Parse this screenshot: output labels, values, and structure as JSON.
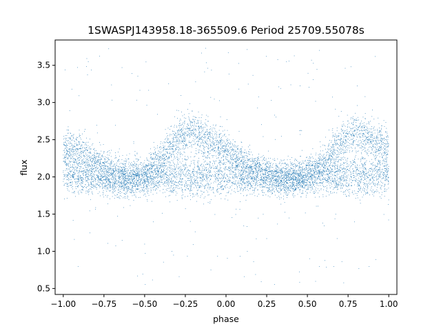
{
  "chart_data": {
    "type": "scatter",
    "title": "1SWASPJ143958.18-365509.6 Period 25709.55078s",
    "xlabel": "phase",
    "ylabel": "flux",
    "xlim": [
      -1.05,
      1.05
    ],
    "ylim": [
      0.42,
      3.84
    ],
    "xticks": [
      -1.0,
      -0.75,
      -0.5,
      -0.25,
      0.0,
      0.25,
      0.5,
      0.75,
      1.0
    ],
    "xtick_labels": [
      "−1.00",
      "−0.75",
      "−0.50",
      "−0.25",
      "0.00",
      "0.25",
      "0.50",
      "0.75",
      "1.00"
    ],
    "yticks": [
      0.5,
      1.0,
      1.5,
      2.0,
      2.5,
      3.0,
      3.5
    ],
    "ytick_labels": [
      "0.5",
      "1.0",
      "1.5",
      "2.0",
      "2.5",
      "3.0",
      "3.5"
    ],
    "grid": false,
    "legend": "none",
    "marker_color": "#1f77b4",
    "series": [
      {
        "x": [
          -1.0,
          -0.9,
          -0.8,
          -0.7,
          -0.6,
          -0.5,
          -0.4,
          -0.3,
          -0.2,
          -0.1,
          0.0,
          0.1,
          0.2,
          0.3,
          0.4,
          0.5,
          0.6,
          0.7,
          0.8,
          0.9,
          1.0
        ],
        "y_upper_branch": [
          2.4,
          2.35,
          2.2,
          2.1,
          2.02,
          2.05,
          2.25,
          2.5,
          2.62,
          2.5,
          2.35,
          2.2,
          2.1,
          2.02,
          2.0,
          2.05,
          2.2,
          2.45,
          2.6,
          2.5,
          2.4
        ],
        "y_lower_branch": [
          2.05,
          2.0,
          1.98,
          1.95,
          1.92,
          1.98,
          2.0,
          2.0,
          2.0,
          2.0,
          2.02,
          2.0,
          1.98,
          1.95,
          1.92,
          1.98,
          2.02,
          2.0,
          2.0,
          2.0,
          2.05
        ],
        "scatter_halfwidth": [
          0.22,
          0.22,
          0.2,
          0.2,
          0.2,
          0.2,
          0.22,
          0.25,
          0.25,
          0.25,
          0.22,
          0.22,
          0.2,
          0.2,
          0.2,
          0.2,
          0.22,
          0.25,
          0.25,
          0.25,
          0.22
        ],
        "outlier_range": [
          0.55,
          3.75
        ]
      }
    ]
  }
}
